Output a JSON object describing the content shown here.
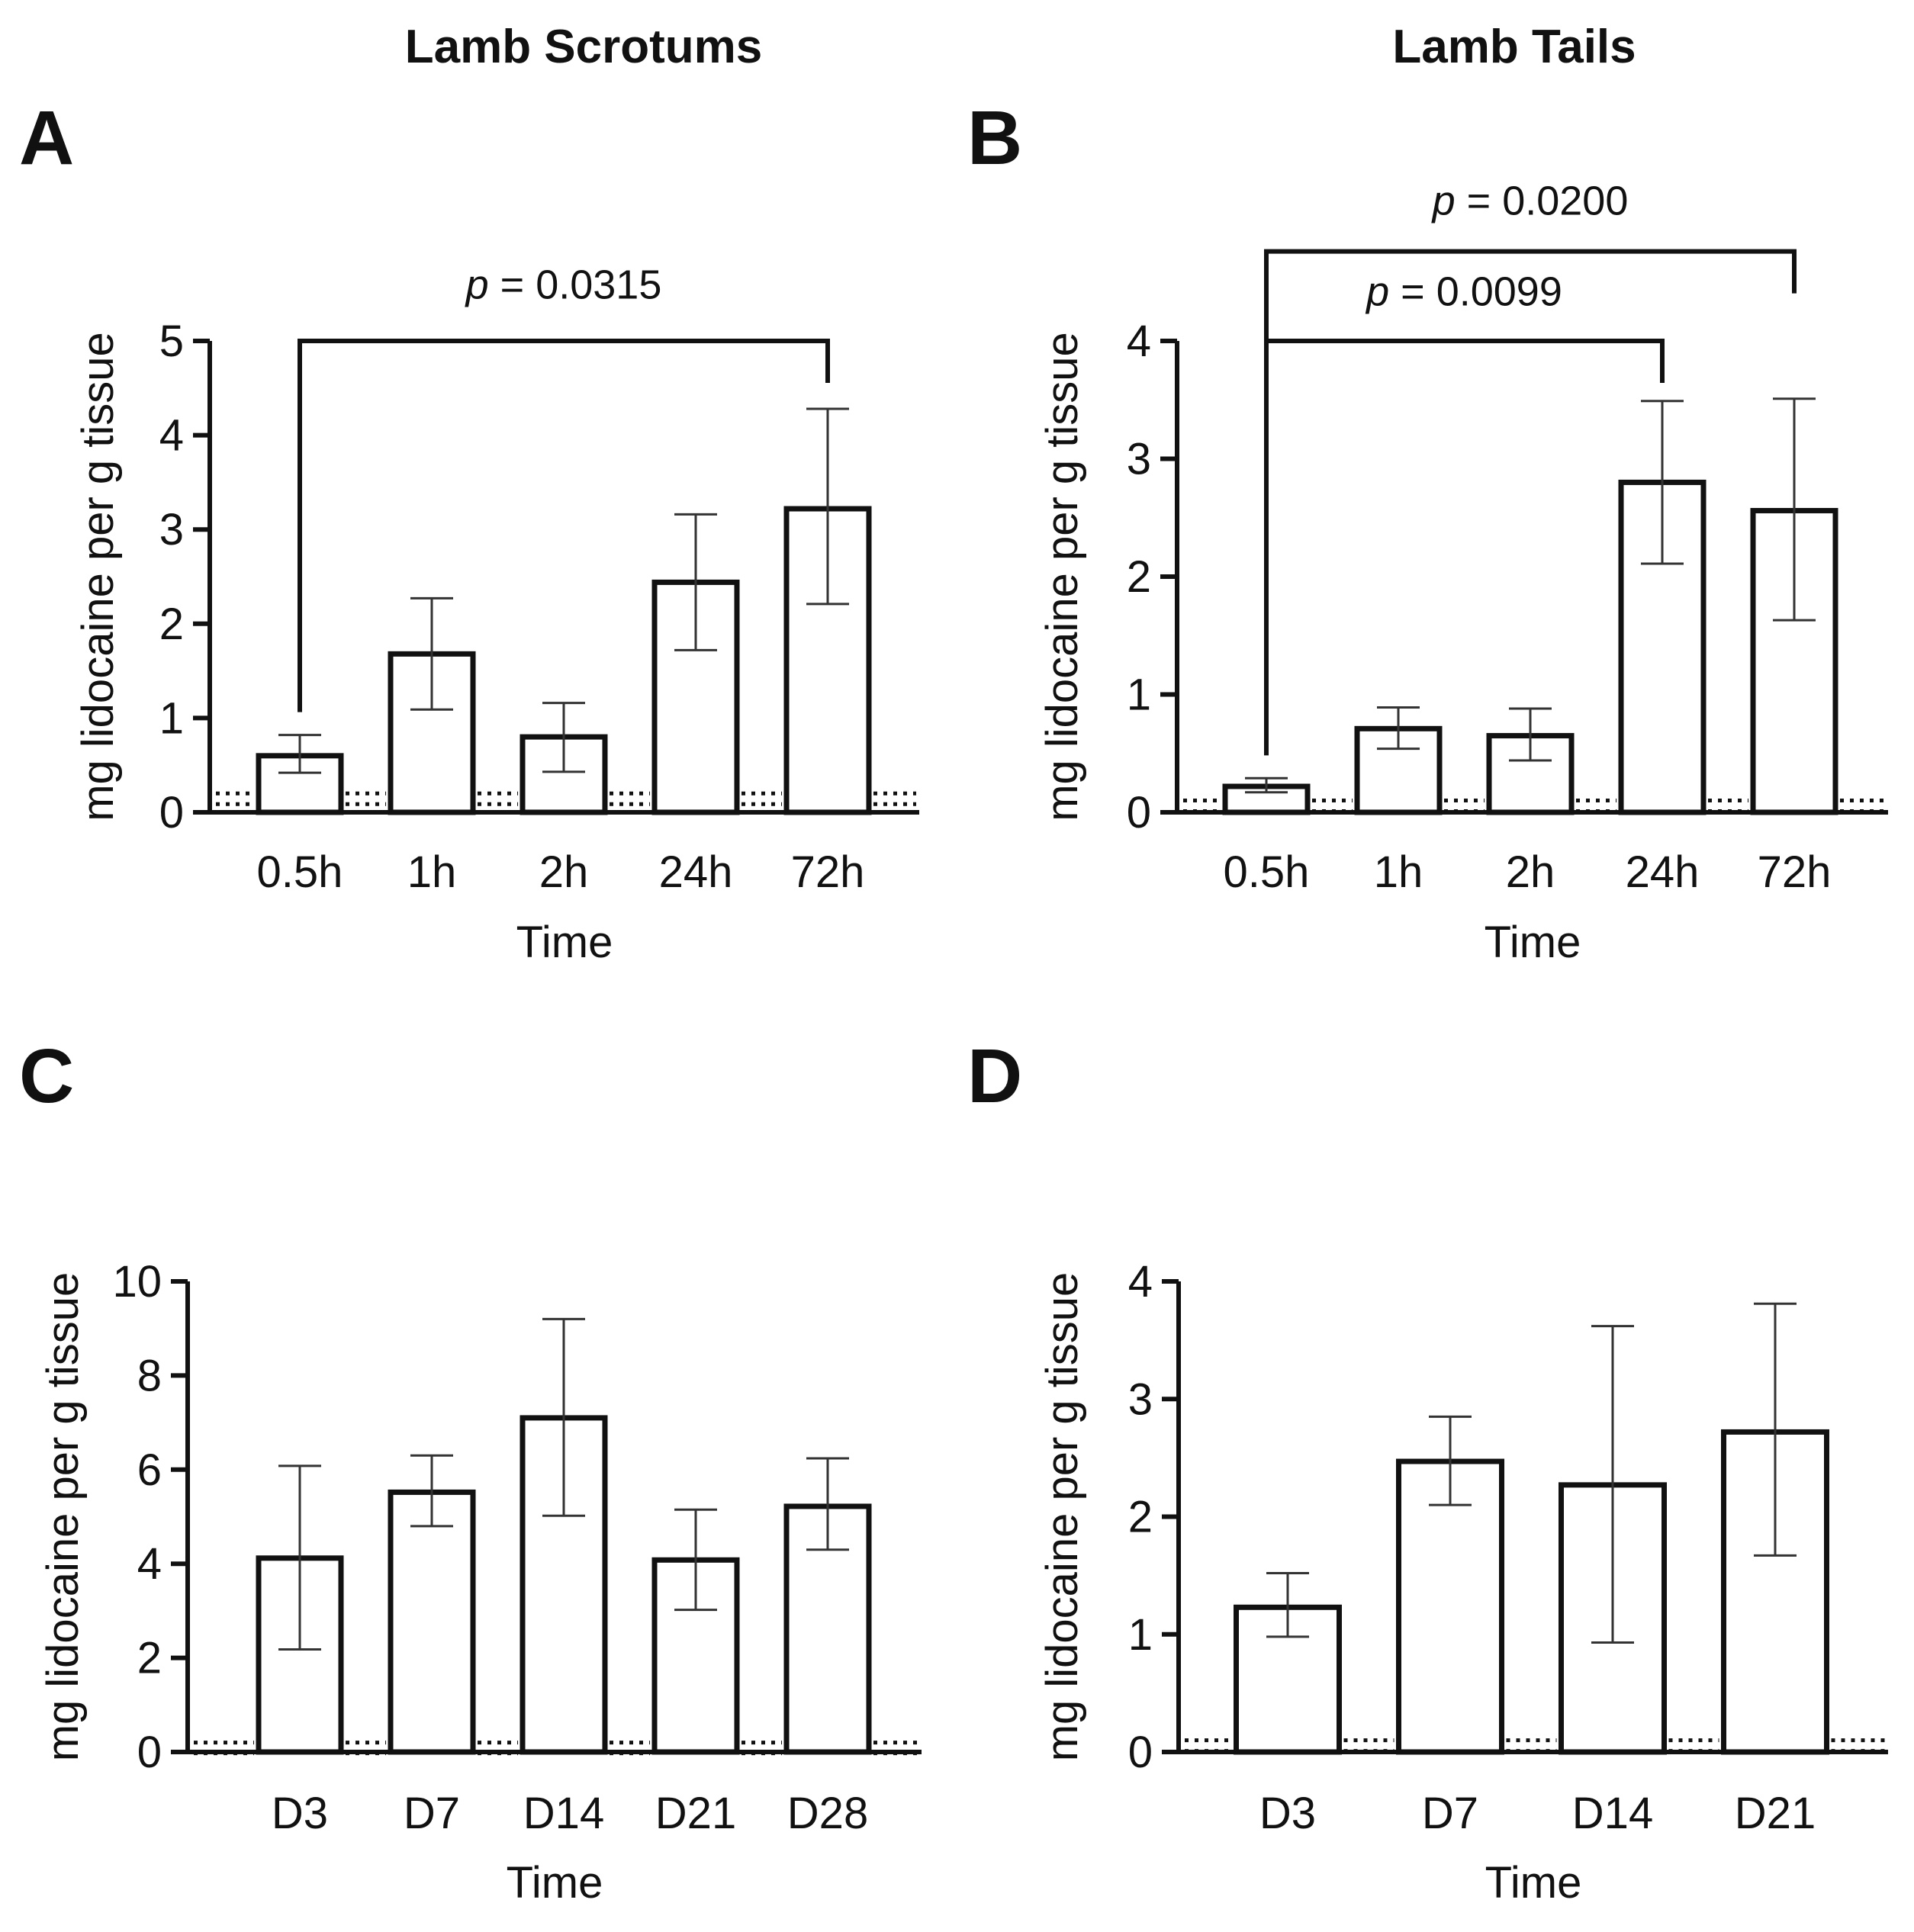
{
  "column_titles": [
    "Lamb Scrotums",
    "Lamb Tails"
  ],
  "chart_data": [
    {
      "panel": "A",
      "type": "bar",
      "title": "",
      "xlabel": "Time",
      "ylabel": "mg lidocaine per g tissue",
      "ylim": [
        0,
        5
      ],
      "yticks": [
        0,
        1,
        2,
        3,
        4,
        5
      ],
      "categories": [
        "0.5h",
        "1h",
        "2h",
        "24h",
        "72h"
      ],
      "values": [
        0.6,
        1.68,
        0.8,
        2.44,
        3.22
      ],
      "err_low": [
        0.42,
        1.09,
        0.43,
        1.72,
        2.21
      ],
      "err_high": [
        0.82,
        2.27,
        1.16,
        3.16,
        4.28
      ],
      "lloq_line": 0.2,
      "significance": [
        {
          "from": 0,
          "to": 4,
          "label_prefix": "p",
          "label_value": "= 0.0315",
          "level": 5.0,
          "text_y": 5.45
        }
      ]
    },
    {
      "panel": "B",
      "type": "bar",
      "title": "",
      "xlabel": "Time",
      "ylabel": "mg lidocaine per g tissue",
      "ylim": [
        0,
        4
      ],
      "yticks": [
        0,
        1,
        2,
        3,
        4
      ],
      "categories": [
        "0.5h",
        "1h",
        "2h",
        "24h",
        "72h"
      ],
      "values": [
        0.22,
        0.71,
        0.65,
        2.8,
        2.56
      ],
      "err_low": [
        0.17,
        0.54,
        0.44,
        2.11,
        1.63
      ],
      "err_high": [
        0.29,
        0.89,
        0.88,
        3.49,
        3.51
      ],
      "lloq_line": 0.1,
      "significance": [
        {
          "from": 0,
          "to": 3,
          "label_prefix": "p",
          "label_value": "= 0.0099",
          "level": 4.0,
          "text_y": 4.3
        },
        {
          "from": 0,
          "to": 4,
          "label_prefix": "p",
          "label_value": "= 0.0200",
          "level": 4.76,
          "text_y": 5.07
        }
      ]
    },
    {
      "panel": "C",
      "type": "bar",
      "title": "",
      "xlabel": "Time",
      "ylabel": "mg lidocaine per g tissue",
      "ylim": [
        0,
        10
      ],
      "yticks": [
        0,
        2,
        4,
        6,
        8,
        10
      ],
      "categories": [
        "D3",
        "D7",
        "D14",
        "D21",
        "D28"
      ],
      "values": [
        4.12,
        5.52,
        7.1,
        4.08,
        5.22
      ],
      "err_low": [
        2.18,
        4.8,
        5.02,
        3.02,
        4.3
      ],
      "err_high": [
        6.08,
        6.3,
        9.2,
        5.15,
        6.24
      ],
      "lloq_line": 0.2,
      "significance": []
    },
    {
      "panel": "D",
      "type": "bar",
      "title": "",
      "xlabel": "Time",
      "ylabel": "mg lidocaine per g tissue",
      "ylim": [
        0,
        4
      ],
      "yticks": [
        0,
        1,
        2,
        3,
        4
      ],
      "categories": [
        "D3",
        "D7",
        "D14",
        "D21"
      ],
      "values": [
        1.23,
        2.47,
        2.27,
        2.72
      ],
      "err_low": [
        0.98,
        2.1,
        0.93,
        1.67
      ],
      "err_high": [
        1.52,
        2.85,
        3.62,
        3.81
      ],
      "lloq_line": 0.1,
      "significance": []
    }
  ]
}
